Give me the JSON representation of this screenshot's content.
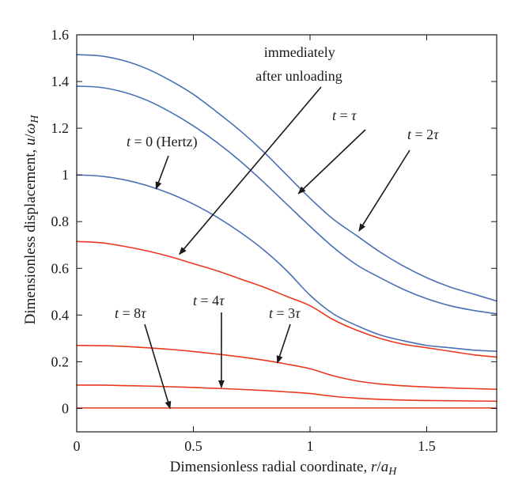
{
  "chart_data": {
    "type": "line",
    "xlabel": "Dimensionless radial coordinate, r/a_H",
    "ylabel": "Dimensionless displacement, u/ω_H",
    "xlim": [
      0,
      1.8
    ],
    "ylim": [
      -0.1,
      1.6
    ],
    "xticks": [
      0,
      0.5,
      1,
      1.5
    ],
    "xtick_labels": [
      "0",
      "0.5",
      "1",
      "1.5"
    ],
    "yticks": [
      0,
      0.2,
      0.4,
      0.6,
      0.8,
      1.0,
      1.2,
      1.4,
      1.6
    ],
    "ytick_labels": [
      "0",
      "0.2",
      "0.4",
      "0.6",
      "0.8",
      "1",
      "1.2",
      "1.4",
      "1.6"
    ],
    "colors": {
      "loading": "#4a6fb5",
      "unloading": "#e8391f"
    },
    "series": [
      {
        "name": "t = 2τ",
        "color_key": "loading",
        "x": [
          0,
          0.1,
          0.2,
          0.3,
          0.4,
          0.5,
          0.6,
          0.7,
          0.8,
          0.9,
          1.0,
          1.1,
          1.2,
          1.3,
          1.4,
          1.5,
          1.6,
          1.7,
          1.8
        ],
        "y": [
          1.515,
          1.51,
          1.49,
          1.455,
          1.405,
          1.345,
          1.27,
          1.19,
          1.1,
          1.0,
          0.9,
          0.81,
          0.74,
          0.67,
          0.61,
          0.56,
          0.52,
          0.49,
          0.46
        ]
      },
      {
        "name": "t = τ",
        "color_key": "loading",
        "x": [
          0,
          0.1,
          0.2,
          0.3,
          0.4,
          0.5,
          0.6,
          0.7,
          0.8,
          0.9,
          1.0,
          1.1,
          1.2,
          1.3,
          1.4,
          1.5,
          1.6,
          1.7,
          1.8
        ],
        "y": [
          1.38,
          1.375,
          1.355,
          1.32,
          1.27,
          1.21,
          1.14,
          1.06,
          0.97,
          0.875,
          0.78,
          0.69,
          0.615,
          0.56,
          0.51,
          0.47,
          0.44,
          0.42,
          0.405
        ]
      },
      {
        "name": "t = 0 (Hertz)",
        "color_key": "loading",
        "x": [
          0,
          0.1,
          0.2,
          0.3,
          0.4,
          0.5,
          0.6,
          0.7,
          0.8,
          0.9,
          1.0,
          1.1,
          1.2,
          1.3,
          1.4,
          1.5,
          1.6,
          1.7,
          1.8
        ],
        "y": [
          1.0,
          0.995,
          0.98,
          0.955,
          0.92,
          0.875,
          0.82,
          0.755,
          0.68,
          0.59,
          0.485,
          0.405,
          0.355,
          0.315,
          0.29,
          0.27,
          0.26,
          0.25,
          0.245
        ]
      },
      {
        "name": "immediately after unloading",
        "color_key": "unloading",
        "x": [
          0,
          0.1,
          0.2,
          0.3,
          0.4,
          0.5,
          0.6,
          0.7,
          0.8,
          0.9,
          1.0,
          1.1,
          1.2,
          1.3,
          1.4,
          1.5,
          1.6,
          1.7,
          1.8
        ],
        "y": [
          0.715,
          0.71,
          0.695,
          0.675,
          0.65,
          0.62,
          0.59,
          0.555,
          0.52,
          0.48,
          0.44,
          0.38,
          0.335,
          0.3,
          0.275,
          0.26,
          0.245,
          0.23,
          0.22
        ]
      },
      {
        "name": "t = 3τ",
        "color_key": "unloading",
        "x": [
          0,
          0.1,
          0.2,
          0.3,
          0.4,
          0.5,
          0.6,
          0.7,
          0.8,
          0.9,
          1.0,
          1.1,
          1.2,
          1.3,
          1.4,
          1.5,
          1.6,
          1.7,
          1.8
        ],
        "y": [
          0.27,
          0.269,
          0.266,
          0.26,
          0.253,
          0.244,
          0.233,
          0.221,
          0.207,
          0.19,
          0.17,
          0.14,
          0.118,
          0.105,
          0.097,
          0.092,
          0.088,
          0.085,
          0.082
        ]
      },
      {
        "name": "t = 4τ",
        "color_key": "unloading",
        "x": [
          0,
          0.1,
          0.2,
          0.3,
          0.4,
          0.5,
          0.6,
          0.7,
          0.8,
          0.9,
          1.0,
          1.1,
          1.2,
          1.3,
          1.4,
          1.5,
          1.6,
          1.7,
          1.8
        ],
        "y": [
          0.1,
          0.1,
          0.098,
          0.096,
          0.093,
          0.09,
          0.086,
          0.082,
          0.077,
          0.071,
          0.064,
          0.052,
          0.044,
          0.039,
          0.036,
          0.034,
          0.033,
          0.032,
          0.031
        ]
      },
      {
        "name": "t = 8τ",
        "color_key": "unloading",
        "x": [
          0,
          0.1,
          0.2,
          0.3,
          0.4,
          0.5,
          0.6,
          0.7,
          0.8,
          0.9,
          1.0,
          1.1,
          1.2,
          1.3,
          1.4,
          1.5,
          1.6,
          1.7,
          1.8
        ],
        "y": [
          0.002,
          0.002,
          0.002,
          0.002,
          0.002,
          0.002,
          0.002,
          0.002,
          0.002,
          0.002,
          0.002,
          0.002,
          0.002,
          0.002,
          0.002,
          0.002,
          0.002,
          0.002,
          0.002
        ]
      }
    ],
    "annotations": [
      {
        "id": "immediately",
        "lines": [
          "immediately",
          "after unloading"
        ],
        "target": {
          "x": 0.44,
          "y": 0.66
        }
      },
      {
        "id": "t-tau",
        "var": "t",
        "eq": " = ",
        "val": "τ",
        "target": {
          "x": 0.95,
          "y": 0.92
        }
      },
      {
        "id": "t-2tau",
        "var": "t",
        "eq": " = 2",
        "val": "τ",
        "target": {
          "x": 1.21,
          "y": 0.76
        }
      },
      {
        "id": "t-0",
        "var": "t",
        "eq": " = 0 (Hertz)",
        "val": "",
        "target": {
          "x": 0.34,
          "y": 0.94
        }
      },
      {
        "id": "t-8tau",
        "var": "t",
        "eq": " = 8",
        "val": "τ",
        "target": {
          "x": 0.4,
          "y": 0.0
        }
      },
      {
        "id": "t-4tau",
        "var": "t",
        "eq": " = 4",
        "val": "τ",
        "target": {
          "x": 0.62,
          "y": 0.09
        }
      },
      {
        "id": "t-3tau",
        "var": "t",
        "eq": " = 3",
        "val": "τ",
        "target": {
          "x": 0.86,
          "y": 0.195
        }
      }
    ]
  }
}
